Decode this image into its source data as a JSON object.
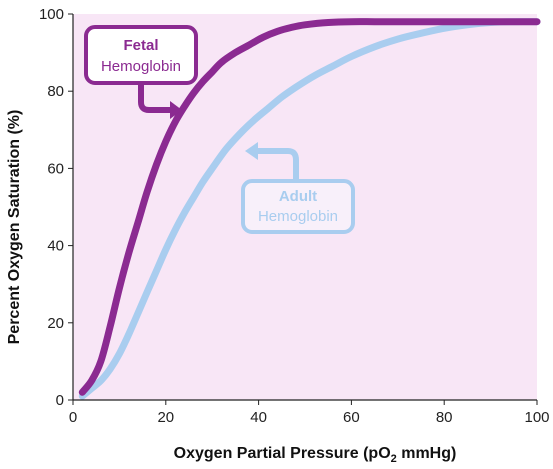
{
  "chart_data": {
    "type": "line",
    "title": "",
    "xlabel": {
      "prefix": "Oxygen Partial Pressure (pO",
      "sub": "2",
      "suffix": " mmHg)"
    },
    "ylabel": "Percent Oxygen Saturation (%)",
    "xlim": [
      0,
      100
    ],
    "ylim": [
      0,
      100
    ],
    "xticks": [
      "0",
      "20",
      "40",
      "60",
      "80",
      "100"
    ],
    "yticks": [
      "0",
      "20",
      "40",
      "60",
      "80",
      "100"
    ],
    "grid": false,
    "colors": {
      "plot_bg": "#f8e6f6",
      "fetal": "#8b2a91",
      "adult": "#a9cdef",
      "fetal_box_fill": "#ffffff",
      "adult_box_fill": "#f8f0fa"
    },
    "series": [
      {
        "name": "Fetal Hemoglobin",
        "x": [
          2,
          4,
          6,
          8,
          10,
          12,
          14,
          16,
          18,
          20,
          22,
          24,
          26,
          28,
          30,
          32,
          35,
          38,
          41,
          44,
          47,
          50,
          55,
          60,
          65,
          70,
          80,
          90,
          100
        ],
        "y": [
          2,
          5,
          10,
          19,
          29,
          38,
          46,
          54,
          61,
          67,
          72,
          76,
          79.5,
          82.5,
          85,
          87.5,
          90,
          92,
          94,
          95.5,
          96.5,
          97.2,
          97.8,
          98,
          98,
          98,
          98,
          98,
          98
        ]
      },
      {
        "name": "Adult Hemoglobin",
        "x": [
          2,
          4,
          6,
          8,
          10,
          12,
          14,
          16,
          18,
          20,
          22,
          24,
          26,
          28,
          30,
          33,
          36,
          39,
          42,
          45,
          48,
          52,
          56,
          60,
          65,
          70,
          75,
          80,
          85,
          90,
          95,
          100
        ],
        "y": [
          1,
          3,
          5,
          8,
          12,
          17,
          22.5,
          28,
          33.5,
          39,
          44,
          48.5,
          52.5,
          56.5,
          60,
          65,
          69,
          72.5,
          75.5,
          78.5,
          81,
          84,
          86.5,
          89,
          91.5,
          93.5,
          95,
          96.3,
          97.2,
          97.8,
          98,
          98
        ]
      }
    ],
    "annotations": [
      {
        "line1": "Fetal",
        "line2": "Hemoglobin",
        "series": "Fetal Hemoglobin"
      },
      {
        "line1": "Adult",
        "line2": "Hemoglobin",
        "series": "Adult Hemoglobin"
      }
    ]
  }
}
